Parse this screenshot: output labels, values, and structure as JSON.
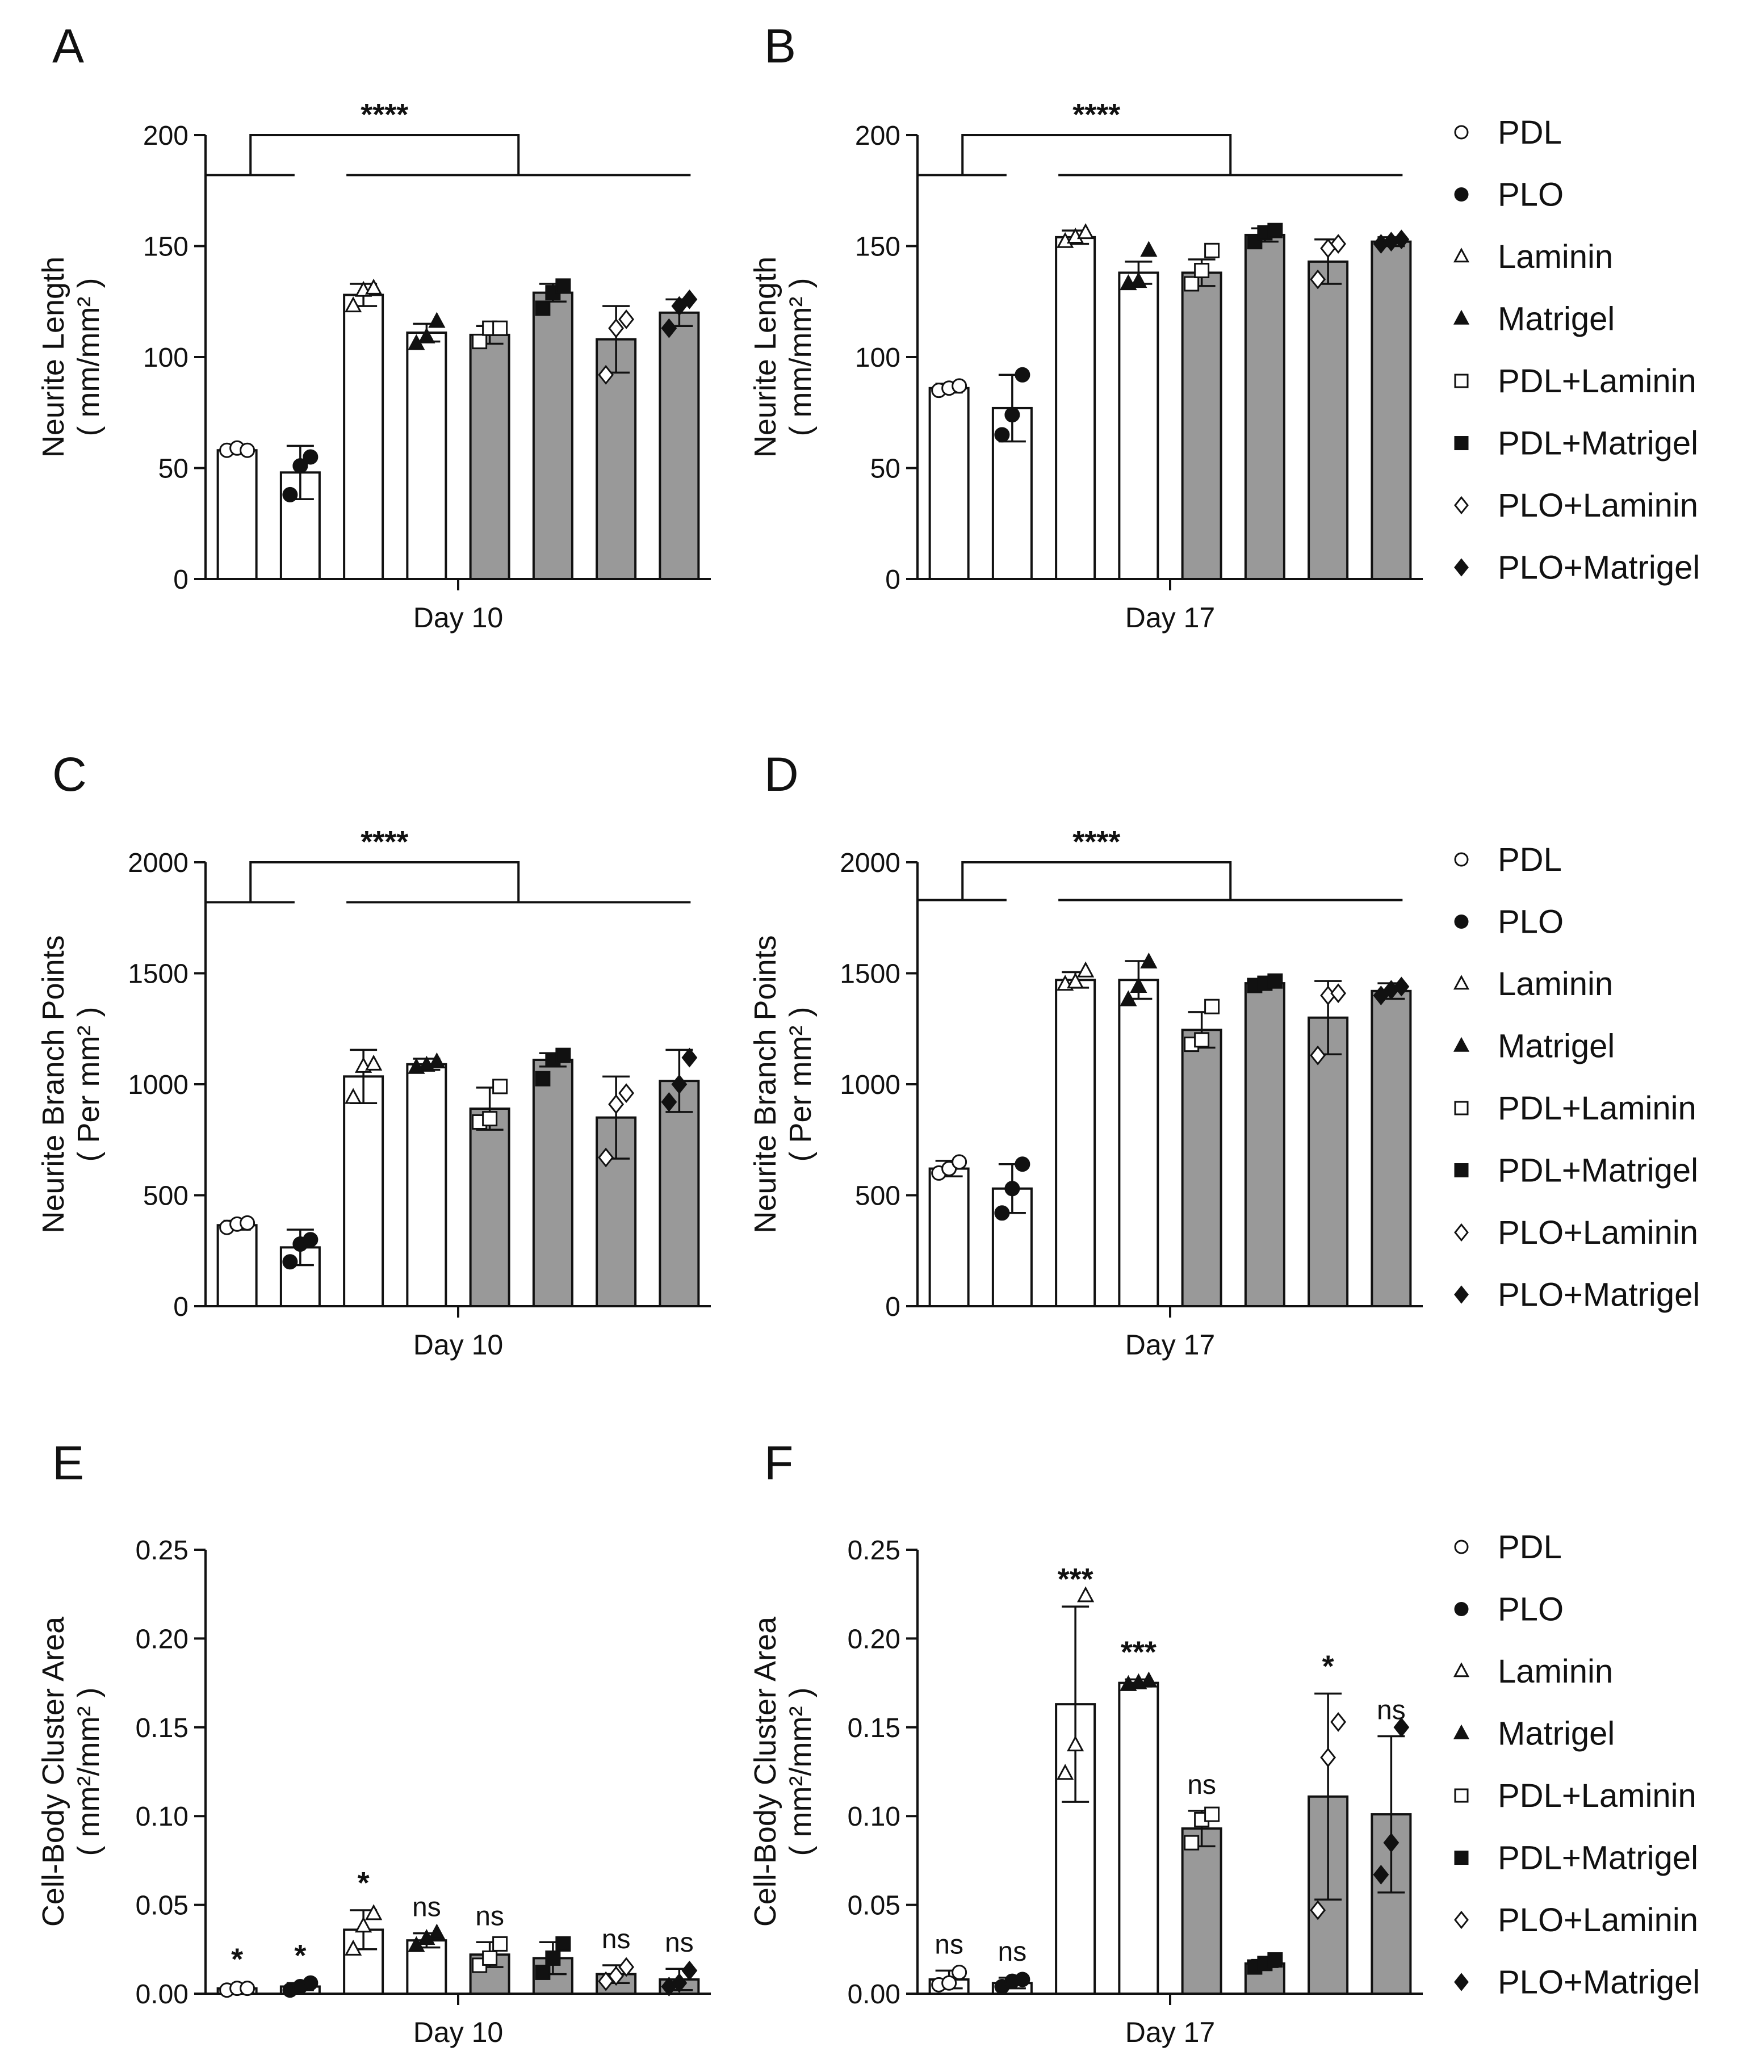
{
  "figure": {
    "groups": [
      "PDL",
      "PLO",
      "Laminin",
      "Matrigel",
      "PDL+Laminin",
      "PDL+Matrigel",
      "PLO+Laminin",
      "PLO+Matrigel"
    ],
    "markers": [
      "circle-open",
      "circle-filled",
      "triangle-open",
      "triangle-filled",
      "square-open",
      "square-filled",
      "diamond-open",
      "diamond-filled"
    ],
    "bar_fills": [
      "#ffffff",
      "#ffffff",
      "#ffffff",
      "#ffffff",
      "#999999",
      "#999999",
      "#999999",
      "#999999"
    ]
  },
  "chart_data": [
    {
      "panel": "A",
      "type": "bar",
      "xlabel": "Day 10",
      "ylabel": "Neurite Length",
      "yunit": "( mm/mm² )",
      "ylim": [
        0,
        200
      ],
      "yticks": [
        0,
        50,
        100,
        150,
        200
      ],
      "tick_decimals": 0,
      "values": [
        58,
        48,
        128,
        111,
        110,
        129,
        108,
        120
      ],
      "errors": [
        1,
        12,
        5,
        4,
        4,
        4,
        15,
        6
      ],
      "points": [
        [
          58,
          59,
          58
        ],
        [
          38,
          51,
          55
        ],
        [
          123,
          130,
          131
        ],
        [
          106,
          109,
          116
        ],
        [
          107,
          113,
          113
        ],
        [
          122,
          129,
          132
        ],
        [
          92,
          113,
          117
        ],
        [
          113,
          123,
          126
        ]
      ],
      "bracket": {
        "label": "****",
        "level": 200,
        "left_level": 182,
        "right_level": 182
      },
      "annotations": [],
      "legend": false
    },
    {
      "panel": "B",
      "type": "bar",
      "xlabel": "Day 17",
      "ylabel": "Neurite Length",
      "yunit": "( mm/mm² )",
      "ylim": [
        0,
        200
      ],
      "yticks": [
        0,
        50,
        100,
        150,
        200
      ],
      "tick_decimals": 0,
      "values": [
        86,
        77,
        154,
        138,
        138,
        155,
        143,
        152
      ],
      "errors": [
        2,
        15,
        3,
        5,
        6,
        3,
        10,
        2
      ],
      "points": [
        [
          85,
          86,
          87
        ],
        [
          65,
          74,
          92
        ],
        [
          152,
          154,
          156
        ],
        [
          133,
          134,
          148
        ],
        [
          133,
          139,
          148
        ],
        [
          152,
          156,
          157
        ],
        [
          135,
          149,
          151
        ],
        [
          151,
          152,
          153
        ]
      ],
      "bracket": {
        "label": "****",
        "level": 200,
        "left_level": 182,
        "right_level": 182
      },
      "annotations": [],
      "legend": true
    },
    {
      "panel": "C",
      "type": "bar",
      "xlabel": "Day 10",
      "ylabel": "Neurite Branch Points",
      "yunit": "( Per mm² )",
      "ylim": [
        0,
        2000
      ],
      "yticks": [
        0,
        500,
        1000,
        1500,
        2000
      ],
      "tick_decimals": 0,
      "values": [
        365,
        265,
        1035,
        1090,
        890,
        1110,
        850,
        1015
      ],
      "errors": [
        20,
        80,
        120,
        25,
        95,
        30,
        185,
        140
      ],
      "points": [
        [
          355,
          370,
          375
        ],
        [
          200,
          280,
          300
        ],
        [
          940,
          1080,
          1090
        ],
        [
          1075,
          1085,
          1100
        ],
        [
          830,
          845,
          990
        ],
        [
          1025,
          1110,
          1130
        ],
        [
          670,
          910,
          960
        ],
        [
          920,
          1000,
          1120
        ]
      ],
      "bracket": {
        "label": "****",
        "level": 2000,
        "left_level": 1820,
        "right_level": 1820
      },
      "annotations": [],
      "legend": false
    },
    {
      "panel": "D",
      "type": "bar",
      "xlabel": "Day 17",
      "ylabel": "Neurite Branch Points",
      "yunit": "( Per mm² )",
      "ylim": [
        0,
        2000
      ],
      "yticks": [
        0,
        500,
        1000,
        1500,
        2000
      ],
      "tick_decimals": 0,
      "values": [
        620,
        530,
        1470,
        1470,
        1245,
        1455,
        1300,
        1420
      ],
      "errors": [
        35,
        110,
        35,
        85,
        80,
        10,
        165,
        35
      ],
      "points": [
        [
          600,
          620,
          650
        ],
        [
          420,
          530,
          640
        ],
        [
          1450,
          1460,
          1510
        ],
        [
          1380,
          1440,
          1550
        ],
        [
          1180,
          1200,
          1350
        ],
        [
          1445,
          1455,
          1465
        ],
        [
          1130,
          1400,
          1410
        ],
        [
          1400,
          1425,
          1440
        ]
      ],
      "bracket": {
        "label": "****",
        "level": 2000,
        "left_level": 1830,
        "right_level": 1830
      },
      "annotations": [],
      "legend": true
    },
    {
      "panel": "E",
      "type": "bar",
      "xlabel": "Day 10",
      "ylabel": "Cell-Body Cluster Area",
      "yunit": "( mm²/mm² )",
      "ylim": [
        0,
        0.25
      ],
      "yticks": [
        0,
        0.05,
        0.1,
        0.15,
        0.2,
        0.25
      ],
      "tick_decimals": 2,
      "values": [
        0.003,
        0.004,
        0.036,
        0.03,
        0.022,
        0.02,
        0.011,
        0.008
      ],
      "errors": [
        0.001,
        0.002,
        0.011,
        0.004,
        0.007,
        0.009,
        0.005,
        0.006
      ],
      "points": [
        [
          0.002,
          0.003,
          0.003
        ],
        [
          0.002,
          0.004,
          0.006
        ],
        [
          0.025,
          0.038,
          0.045
        ],
        [
          0.027,
          0.031,
          0.034
        ],
        [
          0.016,
          0.02,
          0.028
        ],
        [
          0.012,
          0.02,
          0.028
        ],
        [
          0.007,
          0.01,
          0.015
        ],
        [
          0.004,
          0.006,
          0.013
        ]
      ],
      "bracket": null,
      "annotations": [
        "*",
        "*",
        "*",
        "ns",
        "ns",
        "",
        "ns",
        "ns"
      ],
      "legend": false
    },
    {
      "panel": "F",
      "type": "bar",
      "xlabel": "Day 17",
      "ylabel": "Cell-Body Cluster Area",
      "yunit": "( mm²/mm² )",
      "ylim": [
        0,
        0.25
      ],
      "yticks": [
        0,
        0.05,
        0.1,
        0.15,
        0.2,
        0.25
      ],
      "tick_decimals": 2,
      "values": [
        0.008,
        0.006,
        0.163,
        0.175,
        0.093,
        0.017,
        0.111,
        0.101
      ],
      "errors": [
        0.005,
        0.003,
        0.055,
        0.002,
        0.01,
        0.002,
        0.058,
        0.044
      ],
      "points": [
        [
          0.005,
          0.006,
          0.012
        ],
        [
          0.004,
          0.007,
          0.008
        ],
        [
          0.124,
          0.14,
          0.224
        ],
        [
          0.174,
          0.175,
          0.176
        ],
        [
          0.085,
          0.098,
          0.101
        ],
        [
          0.015,
          0.017,
          0.019
        ],
        [
          0.047,
          0.133,
          0.153
        ],
        [
          0.067,
          0.085,
          0.15
        ]
      ],
      "bracket": null,
      "annotations": [
        "ns",
        "ns",
        "***",
        "***",
        "ns",
        "",
        "*",
        "ns"
      ],
      "legend": true
    }
  ]
}
